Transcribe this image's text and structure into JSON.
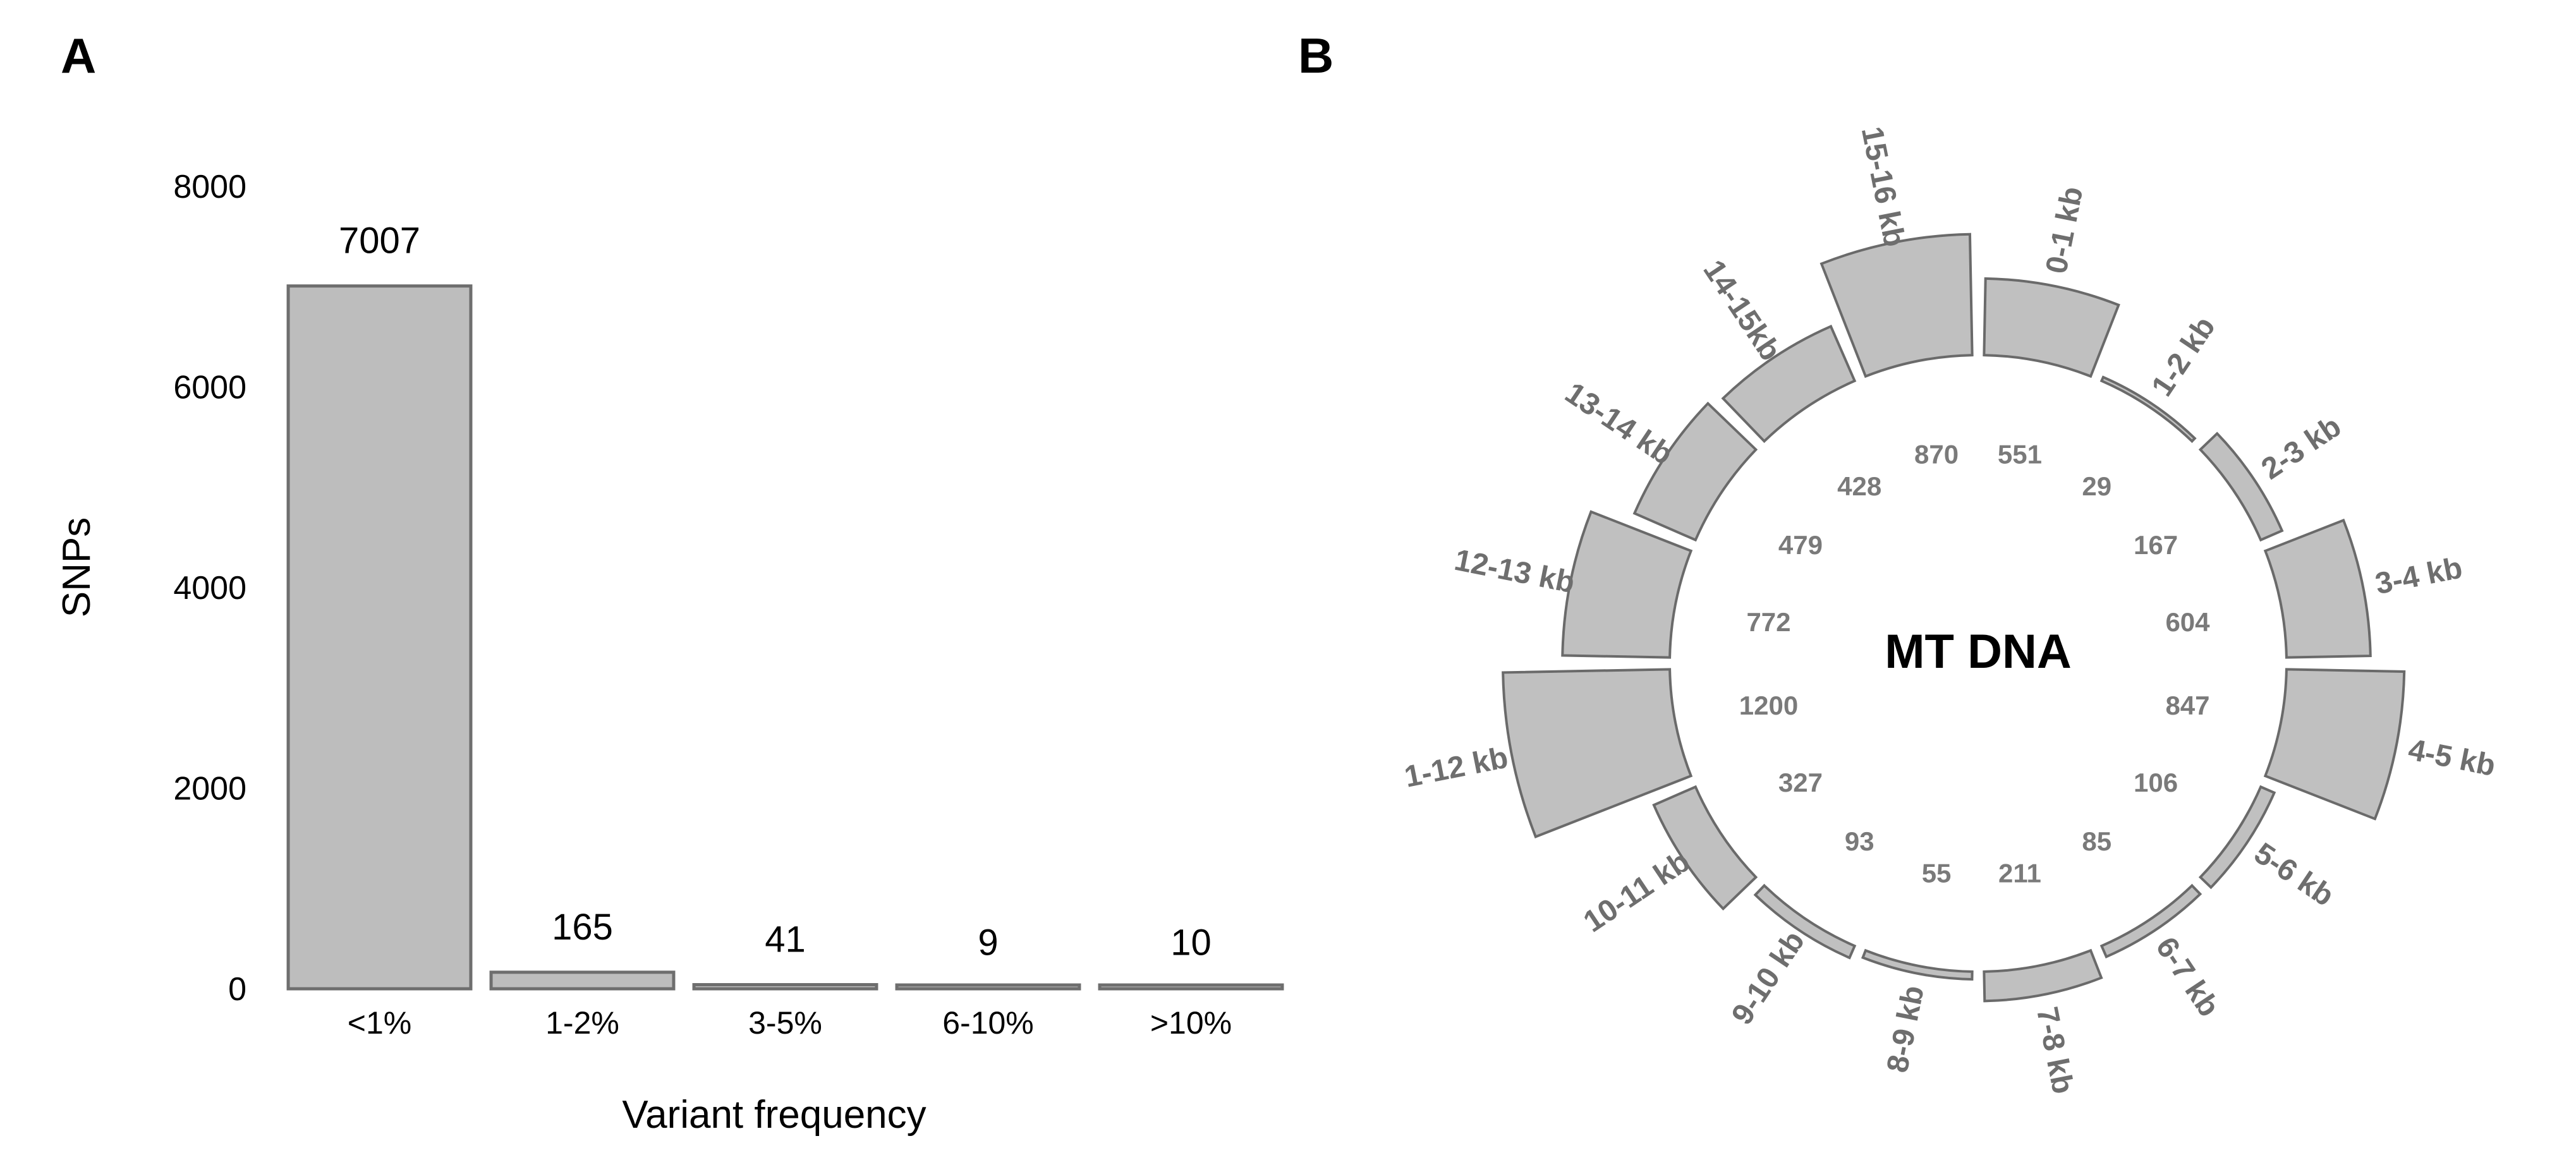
{
  "chart_data": [
    {
      "type": "bar",
      "panel": "A",
      "title": "",
      "xlabel": "Variant frequency",
      "ylabel": "SNPs",
      "ylim": [
        0,
        8000
      ],
      "yticks": [
        "0",
        "2000",
        "4000",
        "6000",
        "8000"
      ],
      "categories": [
        "<1%",
        "1-2%",
        "3-5%",
        "6-10%",
        ">10%"
      ],
      "values": [
        7007,
        165,
        41,
        9,
        10
      ],
      "data_labels": [
        "7007",
        "165",
        "41",
        "9",
        "10"
      ],
      "grid": false
    },
    {
      "type": "radial-bar",
      "panel": "B",
      "title": "MT DNA",
      "segments": [
        {
          "label": "0-1 kb",
          "value": 551,
          "value_label": "551"
        },
        {
          "label": "1-2 kb",
          "value": 29,
          "value_label": "29"
        },
        {
          "label": "2-3 kb",
          "value": 167,
          "value_label": "167"
        },
        {
          "label": "3-4 kb",
          "value": 604,
          "value_label": "604"
        },
        {
          "label": "4-5 kb",
          "value": 847,
          "value_label": "847"
        },
        {
          "label": "5-6 kb",
          "value": 106,
          "value_label": "106"
        },
        {
          "label": "6-7 kb",
          "value": 85,
          "value_label": "85"
        },
        {
          "label": "7-8 kb",
          "value": 211,
          "value_label": "211"
        },
        {
          "label": "8-9 kb",
          "value": 55,
          "value_label": "55"
        },
        {
          "label": "9-10 kb",
          "value": 93,
          "value_label": "93"
        },
        {
          "label": "10-11 kb",
          "value": 327,
          "value_label": "327"
        },
        {
          "label": "1-12 kb",
          "value": 1200,
          "value_label": "1200"
        },
        {
          "label": "12-13 kb",
          "value": 772,
          "value_label": "772"
        },
        {
          "label": "13-14 kb",
          "value": 479,
          "value_label": "479"
        },
        {
          "label": "14-15kb",
          "value": 428,
          "value_label": "428"
        },
        {
          "label": "15-16 kb",
          "value": 870,
          "value_label": "870"
        }
      ]
    }
  ]
}
